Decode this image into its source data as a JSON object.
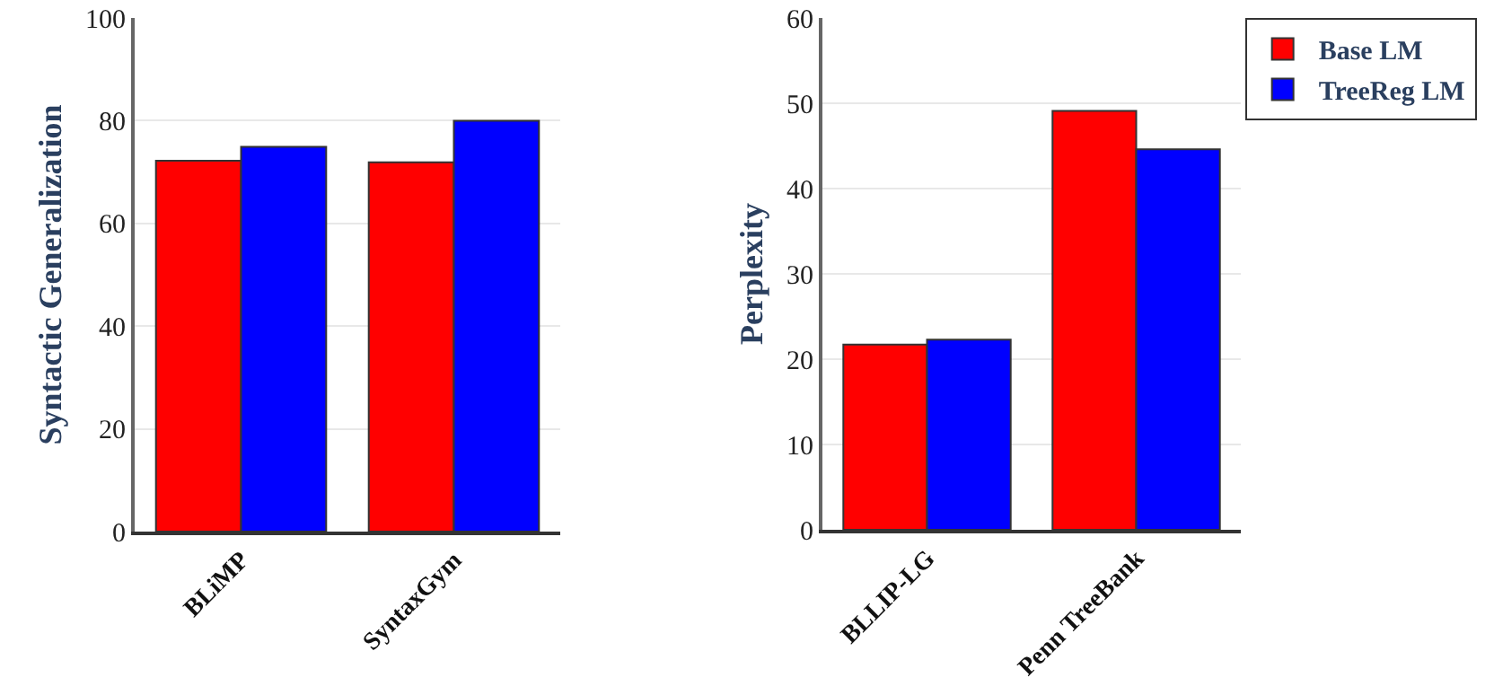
{
  "chart_data": [
    {
      "type": "bar",
      "ylabel": "Syntactic Generalization",
      "categories": [
        "BLiMP",
        "SyntaxGym"
      ],
      "series": [
        {
          "color": "#ff0000",
          "values": [
            72.2,
            71.9
          ]
        },
        {
          "color": "#0000ff",
          "values": [
            74.9,
            80.0
          ]
        }
      ],
      "ylim": [
        0,
        100
      ],
      "yticks": [
        0,
        20,
        40,
        60,
        80,
        100
      ],
      "grid": "y",
      "legend": false
    },
    {
      "type": "bar",
      "ylabel": "Perplexity",
      "categories": [
        "BLLIP-LG",
        "Penn TreeBank"
      ],
      "series": [
        {
          "name": "Base LM",
          "color": "#ff0000",
          "values": [
            21.7,
            49.1
          ]
        },
        {
          "name": "TreeReg LM",
          "color": "#0000ff",
          "values": [
            22.3,
            44.6
          ]
        }
      ],
      "ylim": [
        0,
        60
      ],
      "yticks": [
        0,
        10,
        20,
        30,
        40,
        50,
        60
      ],
      "grid": "y",
      "legend": "top right"
    }
  ]
}
